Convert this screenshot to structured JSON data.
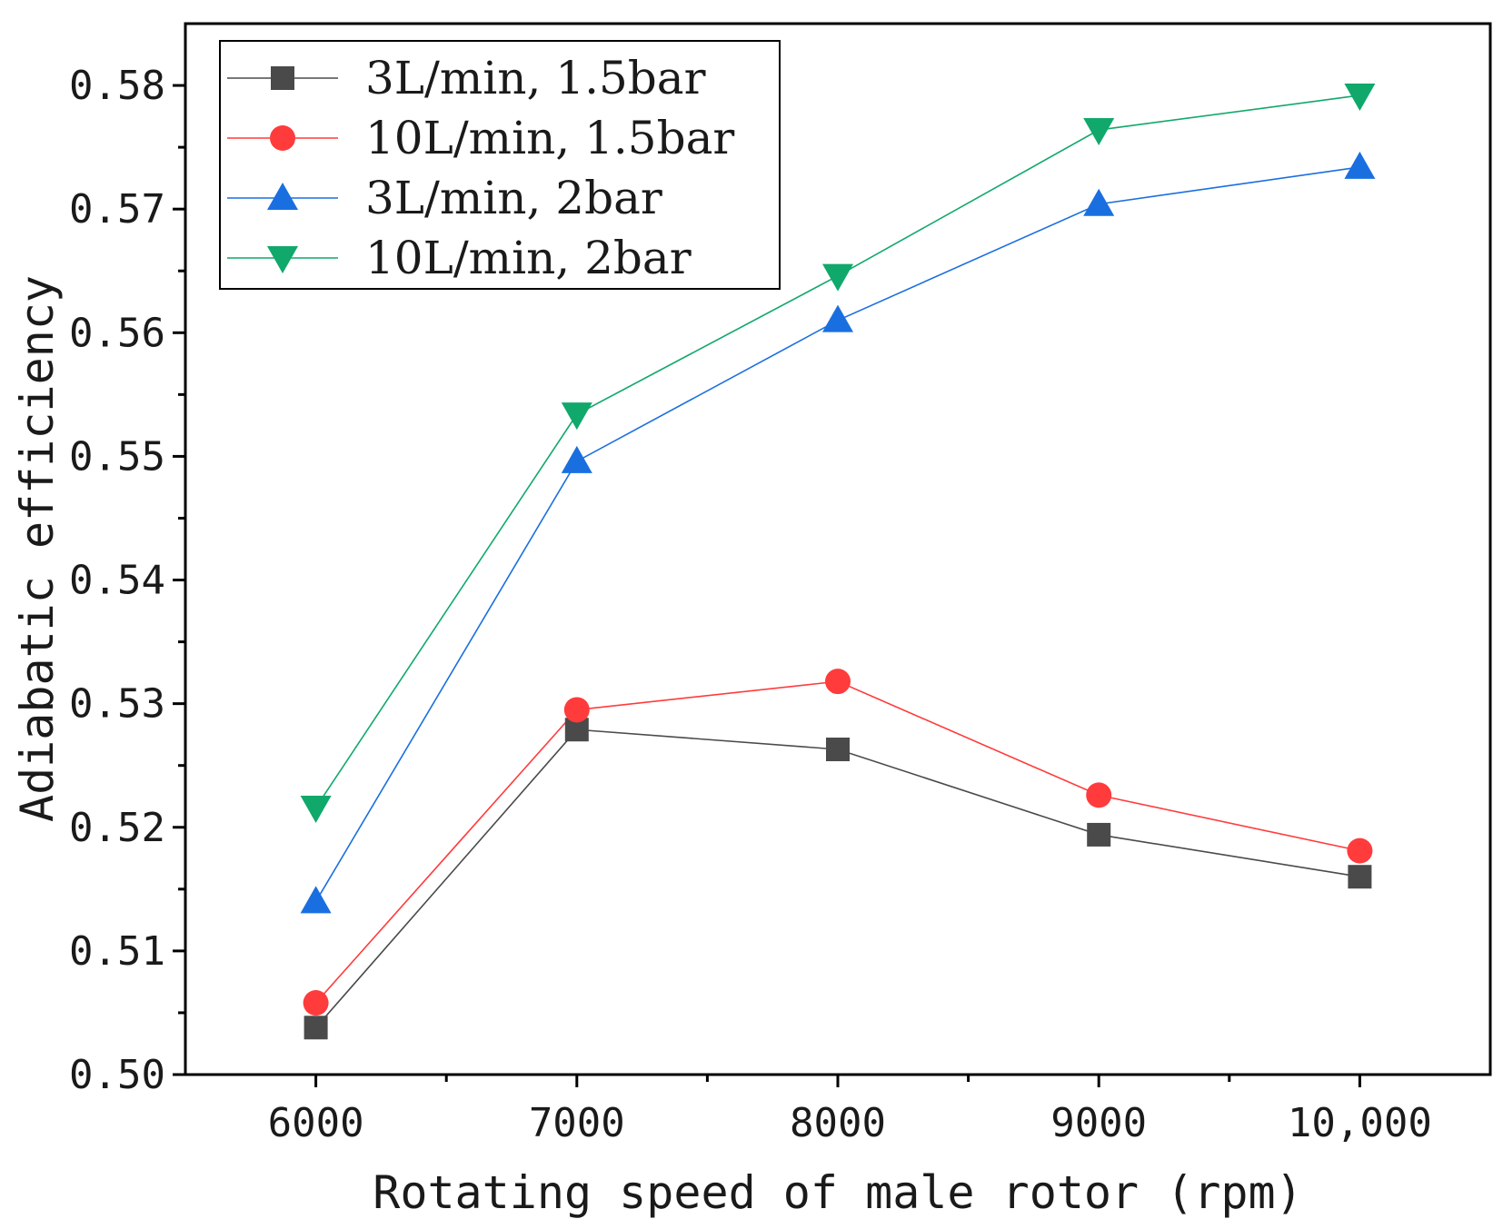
{
  "chart_data": {
    "type": "line",
    "title": "",
    "xlabel": "Rotating speed of male rotor (rpm)",
    "ylabel": "Adiabatic efficiency",
    "x": [
      6000,
      7000,
      8000,
      9000,
      10000
    ],
    "x_tick_labels": [
      "6000",
      "7000",
      "8000",
      "9000",
      "10,000"
    ],
    "xlim": [
      5500,
      10500
    ],
    "ylim": [
      0.5,
      0.585
    ],
    "y_ticks": [
      0.5,
      0.51,
      0.52,
      0.53,
      0.54,
      0.55,
      0.56,
      0.57,
      0.58
    ],
    "y_tick_labels": [
      "0.50",
      "0.51",
      "0.52",
      "0.53",
      "0.54",
      "0.55",
      "0.56",
      "0.57",
      "0.58"
    ],
    "grid": false,
    "legend_position": "top-left",
    "series": [
      {
        "name": "3L/min, 1.5bar",
        "marker": "square",
        "color": "#4a4a4a",
        "values": [
          0.5038,
          0.5279,
          0.5263,
          0.5194,
          0.516
        ]
      },
      {
        "name": "10L/min, 1.5bar",
        "marker": "circle",
        "color": "#ff3b3b",
        "values": [
          0.5058,
          0.5295,
          0.5318,
          0.5226,
          0.5181
        ]
      },
      {
        "name": "3L/min, 2bar",
        "marker": "triangle-up",
        "color": "#1a6fe0",
        "values": [
          0.514,
          0.5496,
          0.561,
          0.5704,
          0.5734
        ]
      },
      {
        "name": "10L/min, 2bar",
        "marker": "triangle-down",
        "color": "#11a86b",
        "values": [
          0.5216,
          0.5534,
          0.5646,
          0.5764,
          0.5792
        ]
      }
    ]
  }
}
